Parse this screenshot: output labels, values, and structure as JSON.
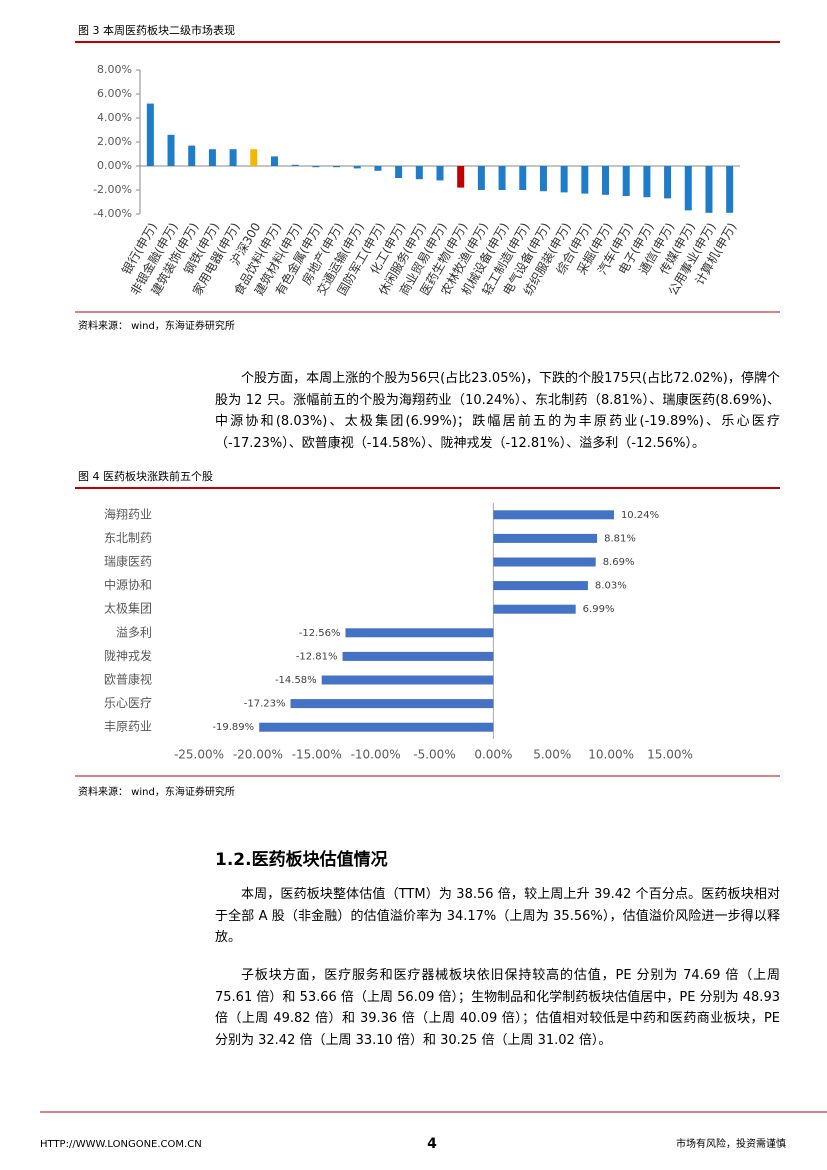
{
  "chart_data": [
    {
      "type": "bar",
      "title": "图 3 本周医药板块二级市场表现",
      "source": "资料来源： wind，东海证券研究所",
      "categories": [
        "银行(申万)",
        "非银金融(申万)",
        "建筑装饰(申万)",
        "钢铁(申万)",
        "家用电器(申万)",
        "沪深300",
        "食品饮料(申万)",
        "建筑材料(申万)",
        "有色金属(申万)",
        "房地产(申万)",
        "交通运输(申万)",
        "国防军工(申万)",
        "化工(申万)",
        "休闲服务(申万)",
        "商业贸易(申万)",
        "医药生物(申万)",
        "农林牧渔(申万)",
        "机械设备(申万)",
        "轻工制造(申万)",
        "电气设备(申万)",
        "纺织服装(申万)",
        "综合(申万)",
        "采掘(申万)",
        "汽车(申万)",
        "电子(申万)",
        "通信(申万)",
        "传媒(申万)",
        "公用事业(申万)",
        "计算机(申万)"
      ],
      "values": [
        5.2,
        2.6,
        1.7,
        1.4,
        1.4,
        1.4,
        0.8,
        0.1,
        -0.1,
        -0.1,
        -0.2,
        -0.4,
        -1.0,
        -1.1,
        -1.2,
        -1.8,
        -2.0,
        -2.0,
        -2.0,
        -2.1,
        -2.2,
        -2.3,
        -2.4,
        -2.5,
        -2.6,
        -2.7,
        -3.7,
        -3.9,
        -3.9
      ],
      "colors": [
        "#1f7cc8",
        "#1f7cc8",
        "#1f7cc8",
        "#1f7cc8",
        "#1f7cc8",
        "#f5b800",
        "#1f7cc8",
        "#1f7cc8",
        "#1f7cc8",
        "#1f7cc8",
        "#1f7cc8",
        "#1f7cc8",
        "#1f7cc8",
        "#1f7cc8",
        "#1f7cc8",
        "#c00000",
        "#1f7cc8",
        "#1f7cc8",
        "#1f7cc8",
        "#1f7cc8",
        "#1f7cc8",
        "#1f7cc8",
        "#1f7cc8",
        "#1f7cc8",
        "#1f7cc8",
        "#1f7cc8",
        "#1f7cc8",
        "#1f7cc8",
        "#1f7cc8"
      ],
      "ylim": [
        -4,
        8
      ],
      "yticks": [
        {
          "value": 8,
          "label": "8.00%"
        },
        {
          "value": 6,
          "label": "6.00%"
        },
        {
          "value": 4,
          "label": "4.00%"
        },
        {
          "value": 2,
          "label": "2.00%"
        },
        {
          "value": 0,
          "label": "0.00%"
        },
        {
          "value": -2,
          "label": "-2.00%"
        },
        {
          "value": -4,
          "label": "-4.00%"
        }
      ]
    },
    {
      "type": "hbar",
      "title": "图 4 医药板块涨跌前五个股",
      "source": "资料来源： wind，东海证券研究所",
      "categories": [
        "海翔药业",
        "东北制药",
        "瑞康医药",
        "中源协和",
        "太极集团",
        "溢多利",
        "陇神戎发",
        "欧普康视",
        "乐心医疗",
        "丰原药业"
      ],
      "values": [
        10.24,
        8.81,
        8.69,
        8.03,
        6.99,
        -12.56,
        -12.81,
        -14.58,
        -17.23,
        -19.89
      ],
      "value_labels": [
        "10.24%",
        "8.81%",
        "8.69%",
        "8.03%",
        "6.99%",
        "-12.56%",
        "-12.81%",
        "-14.58%",
        "-17.23%",
        "-19.89%"
      ],
      "color": "#4472c4",
      "xlim": [
        -25,
        15
      ],
      "xticks": [
        {
          "value": -25,
          "label": "-25.00%"
        },
        {
          "value": -20,
          "label": "-20.00%"
        },
        {
          "value": -15,
          "label": "-15.00%"
        },
        {
          "value": -10,
          "label": "-10.00%"
        },
        {
          "value": -5,
          "label": "-5.00%"
        },
        {
          "value": 0,
          "label": "0.00%"
        },
        {
          "value": 5,
          "label": "5.00%"
        },
        {
          "value": 10,
          "label": "10.00%"
        },
        {
          "value": 15,
          "label": "15.00%"
        }
      ]
    }
  ],
  "paragraphs": [
    "个股方面，本周上涨的个股为56只(占比23.05%)，下跌的个股175只(占比72.02%)，停牌个股为 12 只。涨幅前五的个股为海翔药业（10.24%）、东北制药（8.81%）、瑞康医药(8.69%)、中源协和(8.03%)、太极集团(6.99%)；跌幅居前五的为丰原药业(-19.89%)、乐心医疗（-17.23%）、欧普康视（-14.58%）、陇神戎发（-12.81%）、溢多利（-12.56%）。"
  ],
  "section": {
    "heading": "1.2.医药板块估值情况",
    "paragraphs": [
      "本周，医药板块整体估值（TTM）为 38.56 倍，较上周上升 39.42 个百分点。医药板块相对于全部 A 股（非金融）的估值溢价率为 34.17%（上周为 35.56%），估值溢价风险进一步得以释放。",
      "子板块方面，医疗服务和医疗器械板块依旧保持较高的估值，PE 分别为 74.69 倍（上周 75.61 倍）和 53.66 倍（上周 56.09 倍）；生物制品和化学制药板块估值居中，PE 分别为 48.93 倍（上周 49.82 倍）和 39.36 倍（上周 40.09 倍）；估值相对较低是中药和医药商业板块，PE 分别为 32.42 倍（上周 33.10 倍）和 30.25 倍（上周 31.02 倍）。"
    ]
  },
  "footer": {
    "left": "HTTP://WWW.LONGONE.COM.CN",
    "page": "4",
    "right": "市场有风险，投资需谨慎"
  }
}
